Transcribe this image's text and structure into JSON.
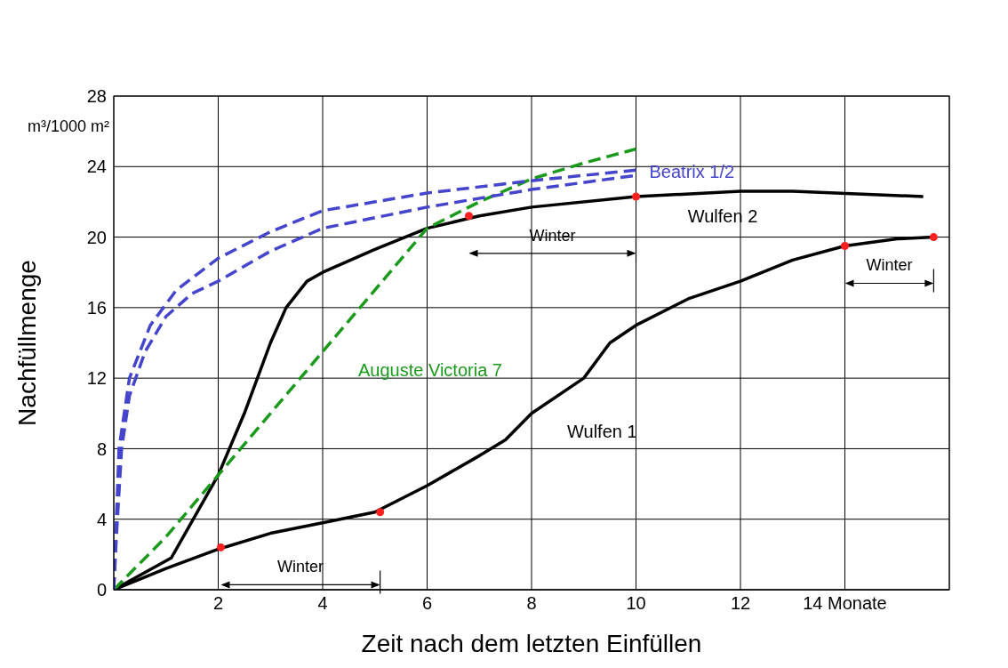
{
  "chart_data": {
    "type": "line",
    "xlabel": "Zeit nach dem letzten Einfüllen",
    "ylabel": "Nachfüllmenge",
    "xlim": [
      0,
      16
    ],
    "xticks": [
      2,
      4,
      6,
      8,
      10,
      12,
      {
        "value": 14,
        "label": "14 Monate"
      },
      {
        "value": 16,
        "label": null
      }
    ],
    "ylim": [
      0,
      28
    ],
    "yticks": [
      0,
      4,
      8,
      12,
      16,
      20,
      24,
      28
    ],
    "grid": true,
    "series": [
      {
        "name": "Wulfen 2",
        "color": "#000000",
        "line_style": "solid",
        "x": [
          0,
          1.1,
          2,
          2.5,
          3,
          3.3,
          3.7,
          4,
          5,
          6,
          7,
          8,
          10,
          12,
          13,
          15.5
        ],
        "values": [
          0,
          1.8,
          6.5,
          10,
          14,
          16,
          17.5,
          18,
          19.3,
          20.5,
          21.2,
          21.7,
          22.3,
          22.6,
          22.6,
          22.3
        ]
      },
      {
        "name": "Wulfen 1",
        "color": "#000000",
        "line_style": "solid",
        "x": [
          0,
          0.5,
          1,
          2,
          3,
          4,
          5,
          6,
          7,
          7.5,
          8,
          9,
          9.5,
          10,
          11,
          12,
          13,
          14,
          15,
          15.7
        ],
        "values": [
          0,
          0.6,
          1.2,
          2.3,
          3.2,
          3.8,
          4.4,
          5.9,
          7.6,
          8.5,
          10,
          12,
          14,
          15,
          16.5,
          17.5,
          18.7,
          19.5,
          19.9,
          20
        ]
      },
      {
        "name": "Auguste Victoria 7",
        "color": "#1a9a1a",
        "line_style": "dashed",
        "x": [
          0,
          1,
          2,
          3,
          4,
          5,
          6,
          7,
          8,
          9,
          10
        ],
        "values": [
          0,
          3,
          6.5,
          10,
          13.5,
          17,
          20.5,
          22,
          23.3,
          24.2,
          25
        ]
      },
      {
        "name": "Beatrix 1/2",
        "color": "#4444cc",
        "line_style": "dashed",
        "x": [
          0,
          0.05,
          0.15,
          0.3,
          0.6,
          1,
          1.5,
          2,
          3,
          4,
          6,
          8,
          10
        ],
        "values": [
          0,
          3,
          8,
          11,
          13.5,
          15.5,
          16.8,
          17.5,
          19.2,
          20.5,
          21.7,
          22.7,
          23.5
        ]
      },
      {
        "color": "#4444cc",
        "line_style": "dashed",
        "x": [
          0,
          0.1,
          0.3,
          0.7,
          1.2,
          2,
          3,
          4,
          6,
          8,
          10
        ],
        "values": [
          0,
          8,
          12,
          15,
          17,
          18.8,
          20.3,
          21.5,
          22.5,
          23.2,
          23.8
        ]
      },
      {
        "type": "scatter",
        "marker": "circle",
        "color": "#ff2020",
        "x": [
          2.05,
          5.1,
          6.8,
          10,
          14,
          15.7
        ],
        "values": [
          2.4,
          4.4,
          21.2,
          22.3,
          19.5,
          20
        ]
      }
    ],
    "annotations": [
      "m³/1000 m²",
      "Winter",
      "Winter",
      "Winter"
    ]
  }
}
